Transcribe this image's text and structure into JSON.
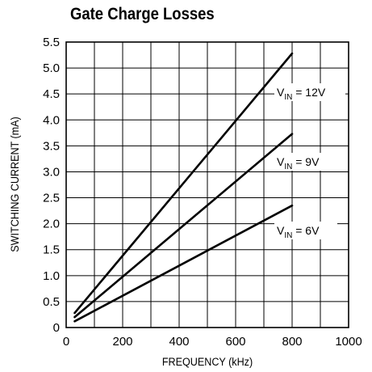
{
  "chart_data": {
    "type": "line",
    "title": "Gate Charge Losses",
    "xlabel": "FREQUENCY (kHz)",
    "ylabel": "SWITCHING CURRENT (mA)",
    "xlim": [
      0,
      1000
    ],
    "ylim": [
      0,
      5.5
    ],
    "xticks": [
      "0",
      "200",
      "400",
      "600",
      "800",
      "1000"
    ],
    "yticks": [
      "0",
      "0.5",
      "1.0",
      "1.5",
      "2.0",
      "2.5",
      "3.0",
      "3.5",
      "4.0",
      "4.5",
      "5.0",
      "5.5"
    ],
    "grid": true,
    "series": [
      {
        "name": "VIN = 12V",
        "label_main": "V",
        "label_sub": "IN",
        "label_rest": " = 12V",
        "x": [
          30,
          800
        ],
        "y": [
          0.28,
          5.28
        ]
      },
      {
        "name": "VIN = 9V",
        "label_main": "V",
        "label_sub": "IN",
        "label_rest": " = 9V",
        "x": [
          30,
          800
        ],
        "y": [
          0.2,
          3.73
        ]
      },
      {
        "name": "VIN = 6V",
        "label_main": "V",
        "label_sub": "IN",
        "label_rest": " = 6V",
        "x": [
          30,
          800
        ],
        "y": [
          0.12,
          2.35
        ]
      }
    ]
  }
}
